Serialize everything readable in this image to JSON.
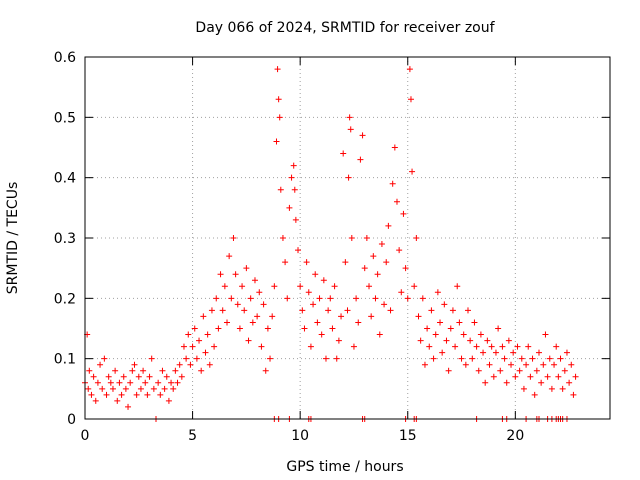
{
  "chart_data": {
    "type": "scatter",
    "title": "Day 066 of 2024, SRMTID for receiver zouf",
    "xlabel": "GPS time / hours",
    "ylabel": "SRMTID / TECUs",
    "xlim": [
      0,
      24.4
    ],
    "ylim": [
      0,
      0.6
    ],
    "xticks": [
      0,
      5,
      10,
      15,
      20
    ],
    "xtick_labels": [
      "0",
      "5",
      "10",
      "15",
      "20"
    ],
    "yticks": [
      0,
      0.1,
      0.2,
      0.3,
      0.4,
      0.5,
      0.6
    ],
    "ytick_labels": [
      "0",
      "0.1",
      "0.2",
      "0.3",
      "0.4",
      "0.5",
      "0.6"
    ],
    "grid": true,
    "marker": "+",
    "marker_color": "#ff0000",
    "series": [
      {
        "name": "SRMTID",
        "points": [
          [
            0.0,
            0.06
          ],
          [
            0.1,
            0.14
          ],
          [
            0.15,
            0.05
          ],
          [
            0.2,
            0.08
          ],
          [
            0.3,
            0.04
          ],
          [
            0.4,
            0.07
          ],
          [
            0.5,
            0.03
          ],
          [
            0.6,
            0.06
          ],
          [
            0.7,
            0.09
          ],
          [
            0.8,
            0.05
          ],
          [
            0.9,
            0.1
          ],
          [
            1.0,
            0.04
          ],
          [
            1.1,
            0.07
          ],
          [
            1.2,
            0.06
          ],
          [
            1.3,
            0.05
          ],
          [
            1.4,
            0.08
          ],
          [
            1.5,
            0.03
          ],
          [
            1.6,
            0.06
          ],
          [
            1.7,
            0.04
          ],
          [
            1.8,
            0.07
          ],
          [
            1.9,
            0.05
          ],
          [
            2.0,
            0.02
          ],
          [
            2.1,
            0.06
          ],
          [
            2.2,
            0.08
          ],
          [
            2.3,
            0.09
          ],
          [
            2.4,
            0.04
          ],
          [
            2.5,
            0.07
          ],
          [
            2.6,
            0.05
          ],
          [
            2.7,
            0.08
          ],
          [
            2.8,
            0.06
          ],
          [
            2.9,
            0.04
          ],
          [
            3.0,
            0.07
          ],
          [
            3.1,
            0.1
          ],
          [
            3.2,
            0.05
          ],
          [
            3.3,
            0.0
          ],
          [
            3.4,
            0.06
          ],
          [
            3.5,
            0.04
          ],
          [
            3.6,
            0.08
          ],
          [
            3.7,
            0.05
          ],
          [
            3.8,
            0.07
          ],
          [
            3.9,
            0.03
          ],
          [
            4.0,
            0.06
          ],
          [
            4.1,
            0.05
          ],
          [
            4.2,
            0.08
          ],
          [
            4.3,
            0.06
          ],
          [
            4.4,
            0.09
          ],
          [
            4.5,
            0.07
          ],
          [
            4.6,
            0.12
          ],
          [
            4.7,
            0.1
          ],
          [
            4.8,
            0.14
          ],
          [
            4.9,
            0.09
          ],
          [
            5.0,
            0.12
          ],
          [
            5.1,
            0.15
          ],
          [
            5.2,
            0.1
          ],
          [
            5.3,
            0.13
          ],
          [
            5.4,
            0.08
          ],
          [
            5.5,
            0.17
          ],
          [
            5.6,
            0.11
          ],
          [
            5.7,
            0.14
          ],
          [
            5.8,
            0.09
          ],
          [
            5.9,
            0.18
          ],
          [
            6.0,
            0.12
          ],
          [
            6.1,
            0.2
          ],
          [
            6.2,
            0.15
          ],
          [
            6.3,
            0.24
          ],
          [
            6.4,
            0.18
          ],
          [
            6.5,
            0.22
          ],
          [
            6.6,
            0.16
          ],
          [
            6.7,
            0.27
          ],
          [
            6.8,
            0.2
          ],
          [
            6.9,
            0.3
          ],
          [
            7.0,
            0.24
          ],
          [
            7.1,
            0.19
          ],
          [
            7.2,
            0.15
          ],
          [
            7.3,
            0.22
          ],
          [
            7.4,
            0.18
          ],
          [
            7.5,
            0.25
          ],
          [
            7.6,
            0.13
          ],
          [
            7.7,
            0.2
          ],
          [
            7.8,
            0.16
          ],
          [
            7.9,
            0.23
          ],
          [
            8.0,
            0.17
          ],
          [
            8.1,
            0.21
          ],
          [
            8.2,
            0.12
          ],
          [
            8.3,
            0.19
          ],
          [
            8.4,
            0.08
          ],
          [
            8.5,
            0.15
          ],
          [
            8.6,
            0.1
          ],
          [
            8.7,
            0.17
          ],
          [
            8.8,
            0.22
          ],
          [
            8.9,
            0.46
          ],
          [
            8.95,
            0.58
          ],
          [
            9.0,
            0.53
          ],
          [
            9.05,
            0.5
          ],
          [
            9.1,
            0.38
          ],
          [
            9.2,
            0.3
          ],
          [
            9.3,
            0.26
          ],
          [
            9.4,
            0.2
          ],
          [
            9.5,
            0.35
          ],
          [
            9.6,
            0.4
          ],
          [
            9.7,
            0.42
          ],
          [
            9.75,
            0.38
          ],
          [
            9.8,
            0.33
          ],
          [
            9.9,
            0.28
          ],
          [
            10.0,
            0.22
          ],
          [
            10.1,
            0.18
          ],
          [
            10.2,
            0.15
          ],
          [
            10.3,
            0.26
          ],
          [
            10.4,
            0.21
          ],
          [
            10.5,
            0.12
          ],
          [
            10.6,
            0.19
          ],
          [
            10.7,
            0.24
          ],
          [
            10.8,
            0.16
          ],
          [
            10.9,
            0.2
          ],
          [
            11.0,
            0.14
          ],
          [
            11.1,
            0.23
          ],
          [
            11.2,
            0.1
          ],
          [
            11.3,
            0.18
          ],
          [
            11.4,
            0.2
          ],
          [
            11.5,
            0.15
          ],
          [
            11.6,
            0.22
          ],
          [
            11.7,
            0.1
          ],
          [
            11.8,
            0.13
          ],
          [
            11.9,
            0.17
          ],
          [
            12.0,
            0.44
          ],
          [
            12.1,
            0.26
          ],
          [
            12.2,
            0.18
          ],
          [
            12.25,
            0.4
          ],
          [
            12.3,
            0.5
          ],
          [
            12.35,
            0.48
          ],
          [
            12.4,
            0.3
          ],
          [
            12.5,
            0.12
          ],
          [
            12.6,
            0.2
          ],
          [
            12.7,
            0.16
          ],
          [
            12.8,
            0.43
          ],
          [
            12.9,
            0.47
          ],
          [
            13.0,
            0.25
          ],
          [
            13.1,
            0.3
          ],
          [
            13.2,
            0.22
          ],
          [
            13.3,
            0.17
          ],
          [
            13.4,
            0.27
          ],
          [
            13.5,
            0.2
          ],
          [
            13.6,
            0.24
          ],
          [
            13.7,
            0.14
          ],
          [
            13.8,
            0.29
          ],
          [
            13.9,
            0.19
          ],
          [
            14.0,
            0.26
          ],
          [
            14.1,
            0.32
          ],
          [
            14.2,
            0.18
          ],
          [
            14.3,
            0.39
          ],
          [
            14.4,
            0.45
          ],
          [
            14.5,
            0.36
          ],
          [
            14.6,
            0.28
          ],
          [
            14.7,
            0.21
          ],
          [
            14.8,
            0.34
          ],
          [
            14.9,
            0.25
          ],
          [
            15.0,
            0.2
          ],
          [
            15.1,
            0.58
          ],
          [
            15.15,
            0.53
          ],
          [
            15.2,
            0.41
          ],
          [
            15.3,
            0.22
          ],
          [
            15.4,
            0.3
          ],
          [
            15.5,
            0.17
          ],
          [
            15.6,
            0.13
          ],
          [
            15.7,
            0.2
          ],
          [
            15.8,
            0.09
          ],
          [
            15.9,
            0.15
          ],
          [
            16.0,
            0.12
          ],
          [
            16.1,
            0.18
          ],
          [
            16.2,
            0.1
          ],
          [
            16.3,
            0.14
          ],
          [
            16.4,
            0.21
          ],
          [
            16.5,
            0.16
          ],
          [
            16.6,
            0.11
          ],
          [
            16.7,
            0.19
          ],
          [
            16.8,
            0.13
          ],
          [
            16.9,
            0.08
          ],
          [
            17.0,
            0.15
          ],
          [
            17.1,
            0.18
          ],
          [
            17.2,
            0.12
          ],
          [
            17.3,
            0.22
          ],
          [
            17.4,
            0.16
          ],
          [
            17.5,
            0.1
          ],
          [
            17.6,
            0.14
          ],
          [
            17.7,
            0.09
          ],
          [
            17.8,
            0.18
          ],
          [
            17.9,
            0.13
          ],
          [
            18.0,
            0.1
          ],
          [
            18.1,
            0.16
          ],
          [
            18.2,
            0.12
          ],
          [
            18.3,
            0.08
          ],
          [
            18.4,
            0.14
          ],
          [
            18.5,
            0.11
          ],
          [
            18.6,
            0.06
          ],
          [
            18.7,
            0.13
          ],
          [
            18.8,
            0.09
          ],
          [
            18.9,
            0.12
          ],
          [
            19.0,
            0.07
          ],
          [
            19.1,
            0.11
          ],
          [
            19.2,
            0.15
          ],
          [
            19.3,
            0.08
          ],
          [
            19.4,
            0.12
          ],
          [
            19.5,
            0.1
          ],
          [
            19.6,
            0.06
          ],
          [
            19.7,
            0.13
          ],
          [
            19.8,
            0.09
          ],
          [
            19.9,
            0.11
          ],
          [
            20.0,
            0.07
          ],
          [
            20.1,
            0.12
          ],
          [
            20.2,
            0.08
          ],
          [
            20.3,
            0.1
          ],
          [
            20.4,
            0.05
          ],
          [
            20.5,
            0.09
          ],
          [
            20.6,
            0.12
          ],
          [
            20.7,
            0.07
          ],
          [
            20.8,
            0.1
          ],
          [
            20.9,
            0.04
          ],
          [
            21.0,
            0.08
          ],
          [
            21.1,
            0.11
          ],
          [
            21.2,
            0.06
          ],
          [
            21.3,
            0.09
          ],
          [
            21.4,
            0.14
          ],
          [
            21.5,
            0.07
          ],
          [
            21.6,
            0.1
          ],
          [
            21.7,
            0.05
          ],
          [
            21.8,
            0.09
          ],
          [
            21.9,
            0.12
          ],
          [
            22.0,
            0.07
          ],
          [
            22.1,
            0.1
          ],
          [
            22.2,
            0.05
          ],
          [
            22.3,
            0.08
          ],
          [
            22.4,
            0.11
          ],
          [
            22.5,
            0.06
          ],
          [
            22.6,
            0.09
          ],
          [
            22.7,
            0.04
          ],
          [
            22.8,
            0.07
          ],
          [
            3.3,
            0.0
          ],
          [
            8.8,
            0.0
          ],
          [
            9.0,
            0.0
          ],
          [
            9.5,
            0.0
          ],
          [
            10.4,
            0.0
          ],
          [
            10.5,
            0.0
          ],
          [
            12.9,
            0.0
          ],
          [
            13.0,
            0.0
          ],
          [
            14.9,
            0.0
          ],
          [
            15.3,
            0.0
          ],
          [
            15.4,
            0.0
          ],
          [
            18.2,
            0.0
          ],
          [
            19.4,
            0.0
          ],
          [
            19.6,
            0.0
          ],
          [
            20.5,
            0.0
          ],
          [
            21.0,
            0.0
          ],
          [
            21.1,
            0.0
          ],
          [
            21.5,
            0.0
          ],
          [
            21.7,
            0.0
          ],
          [
            21.9,
            0.0
          ],
          [
            22.0,
            0.0
          ],
          [
            22.1,
            0.0
          ],
          [
            22.2,
            0.0
          ],
          [
            22.4,
            0.0
          ]
        ]
      }
    ]
  }
}
